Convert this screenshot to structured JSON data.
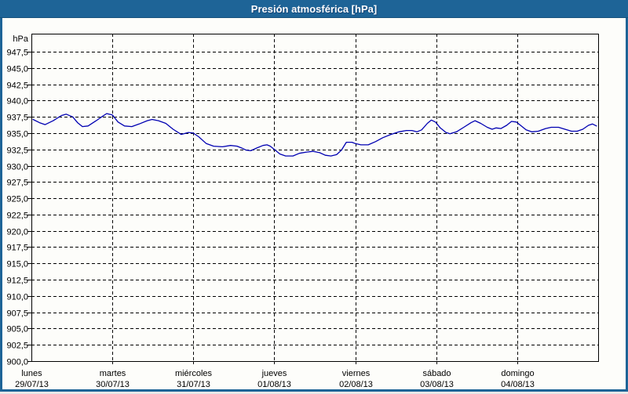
{
  "window": {
    "title": "Presión atmosférica [hPa]",
    "colors": {
      "titlebar_bg": "#1E6497",
      "window_border": "#1E6497",
      "content_bg": "#FDFDFA",
      "grid": "#000000",
      "text": "#000000",
      "series_line": "#0000B2"
    }
  },
  "chart_data": {
    "type": "line",
    "title": "Presión atmosférica [hPa]",
    "ylabel": "hPa",
    "ylim": [
      900.0,
      950.3
    ],
    "y_tick_step": 2.5,
    "grid": "dashed",
    "legend_position": "none",
    "y_ticks": [
      {
        "value": 947.5,
        "label": "947,5"
      },
      {
        "value": 945.0,
        "label": "945,0"
      },
      {
        "value": 942.5,
        "label": "942,5"
      },
      {
        "value": 940.0,
        "label": "940,0"
      },
      {
        "value": 937.5,
        "label": "937,5"
      },
      {
        "value": 935.0,
        "label": "935,0"
      },
      {
        "value": 932.5,
        "label": "932,5"
      },
      {
        "value": 930.0,
        "label": "930,0"
      },
      {
        "value": 927.5,
        "label": "927,5"
      },
      {
        "value": 925.0,
        "label": "925,0"
      },
      {
        "value": 922.5,
        "label": "922,5"
      },
      {
        "value": 920.0,
        "label": "920,0"
      },
      {
        "value": 917.5,
        "label": "917,5"
      },
      {
        "value": 915.0,
        "label": "915,0"
      },
      {
        "value": 912.5,
        "label": "912,5"
      },
      {
        "value": 910.0,
        "label": "910,0"
      },
      {
        "value": 907.5,
        "label": "907,5"
      },
      {
        "value": 905.0,
        "label": "905,0"
      },
      {
        "value": 902.5,
        "label": "902,5"
      },
      {
        "value": 900.0,
        "label": "900,0"
      }
    ],
    "x_categories": [
      {
        "day": "lunes",
        "date": "29/07/13"
      },
      {
        "day": "martes",
        "date": "30/07/13"
      },
      {
        "day": "miércoles",
        "date": "31/07/13"
      },
      {
        "day": "jueves",
        "date": "01/08/13"
      },
      {
        "day": "viernes",
        "date": "02/08/13"
      },
      {
        "day": "sábado",
        "date": "03/08/13"
      },
      {
        "day": "domingo",
        "date": "04/08/13"
      }
    ],
    "series": [
      {
        "name": "Presión atmosférica",
        "color": "#0000B2",
        "x_unit": "days_since_monday",
        "points": [
          [
            0.02,
            937.1
          ],
          [
            0.1,
            936.6
          ],
          [
            0.17,
            936.3
          ],
          [
            0.27,
            936.9
          ],
          [
            0.37,
            937.7
          ],
          [
            0.43,
            937.9
          ],
          [
            0.51,
            937.5
          ],
          [
            0.57,
            936.6
          ],
          [
            0.63,
            936.0
          ],
          [
            0.7,
            936.1
          ],
          [
            0.8,
            936.9
          ],
          [
            0.88,
            937.6
          ],
          [
            0.93,
            938.0
          ],
          [
            1.0,
            937.8
          ],
          [
            1.07,
            936.7
          ],
          [
            1.15,
            936.1
          ],
          [
            1.24,
            936.0
          ],
          [
            1.33,
            936.4
          ],
          [
            1.43,
            936.9
          ],
          [
            1.49,
            937.1
          ],
          [
            1.57,
            936.9
          ],
          [
            1.66,
            936.5
          ],
          [
            1.75,
            935.6
          ],
          [
            1.85,
            934.8
          ],
          [
            1.94,
            935.1
          ],
          [
            2.0,
            935.0
          ],
          [
            2.07,
            934.4
          ],
          [
            2.16,
            933.4
          ],
          [
            2.25,
            933.0
          ],
          [
            2.36,
            932.9
          ],
          [
            2.46,
            933.1
          ],
          [
            2.54,
            933.0
          ],
          [
            2.6,
            932.7
          ],
          [
            2.65,
            932.4
          ],
          [
            2.71,
            932.3
          ],
          [
            2.78,
            932.7
          ],
          [
            2.86,
            933.1
          ],
          [
            2.91,
            933.2
          ],
          [
            2.95,
            933.0
          ],
          [
            3.0,
            932.5
          ],
          [
            3.07,
            931.8
          ],
          [
            3.14,
            931.5
          ],
          [
            3.23,
            931.5
          ],
          [
            3.31,
            931.9
          ],
          [
            3.4,
            932.1
          ],
          [
            3.48,
            932.2
          ],
          [
            3.56,
            932.0
          ],
          [
            3.63,
            931.6
          ],
          [
            3.7,
            931.5
          ],
          [
            3.77,
            931.7
          ],
          [
            3.83,
            932.4
          ],
          [
            3.89,
            933.6
          ],
          [
            3.96,
            933.6
          ],
          [
            4.0,
            933.4
          ],
          [
            4.07,
            933.2
          ],
          [
            4.16,
            933.2
          ],
          [
            4.25,
            933.7
          ],
          [
            4.34,
            934.3
          ],
          [
            4.44,
            934.8
          ],
          [
            4.54,
            935.2
          ],
          [
            4.63,
            935.4
          ],
          [
            4.7,
            935.4
          ],
          [
            4.76,
            935.2
          ],
          [
            4.82,
            935.5
          ],
          [
            4.89,
            936.5
          ],
          [
            4.94,
            937.0
          ],
          [
            4.99,
            936.7
          ],
          [
            5.05,
            935.8
          ],
          [
            5.12,
            935.1
          ],
          [
            5.17,
            934.9
          ],
          [
            5.25,
            935.2
          ],
          [
            5.34,
            935.9
          ],
          [
            5.43,
            936.6
          ],
          [
            5.48,
            936.9
          ],
          [
            5.55,
            936.5
          ],
          [
            5.63,
            935.9
          ],
          [
            5.69,
            935.6
          ],
          [
            5.74,
            935.8
          ],
          [
            5.8,
            935.7
          ],
          [
            5.87,
            936.2
          ],
          [
            5.93,
            936.8
          ],
          [
            5.99,
            936.7
          ],
          [
            6.05,
            936.1
          ],
          [
            6.11,
            935.5
          ],
          [
            6.18,
            935.2
          ],
          [
            6.26,
            935.3
          ],
          [
            6.35,
            935.7
          ],
          [
            6.42,
            935.9
          ],
          [
            6.51,
            935.9
          ],
          [
            6.59,
            935.6
          ],
          [
            6.67,
            935.3
          ],
          [
            6.74,
            935.3
          ],
          [
            6.81,
            935.6
          ],
          [
            6.88,
            936.2
          ],
          [
            6.93,
            936.4
          ],
          [
            6.98,
            936.1
          ]
        ]
      }
    ]
  }
}
